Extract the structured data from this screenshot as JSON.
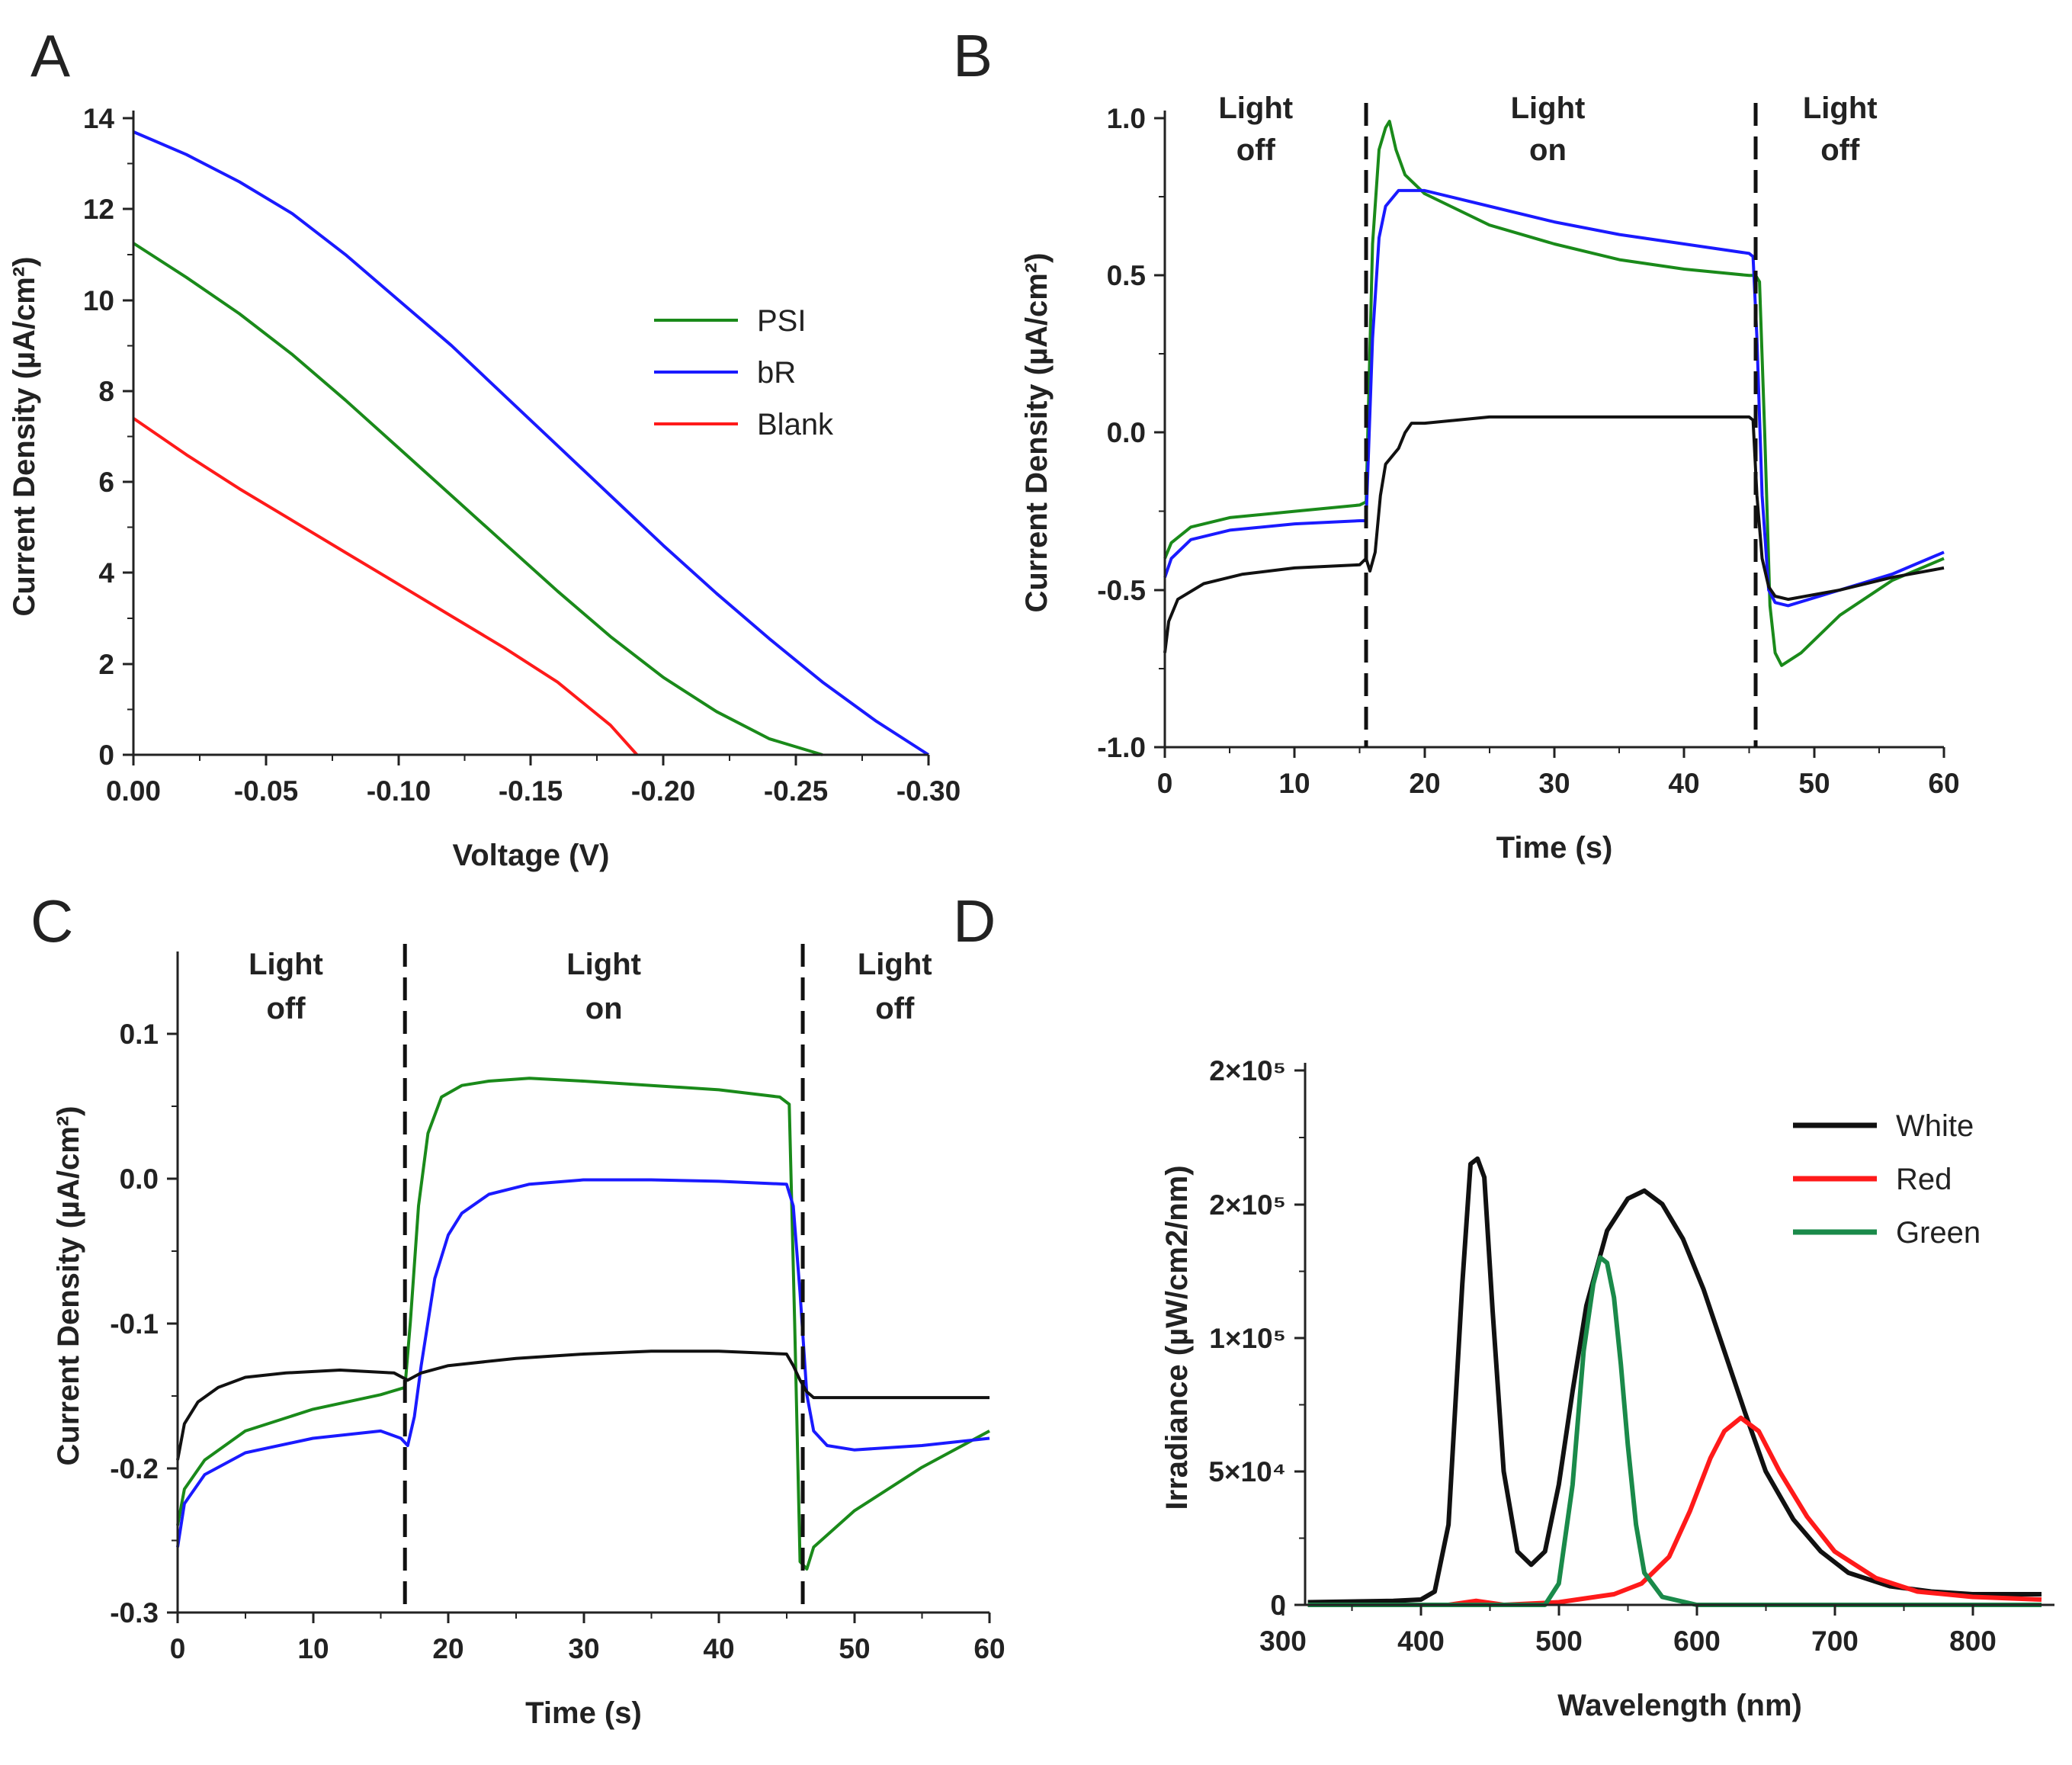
{
  "figure": {
    "panels": [
      "A",
      "B",
      "C",
      "D"
    ]
  },
  "chart_data": [
    {
      "panel": "A",
      "type": "line",
      "title": "",
      "xlabel": "Voltage (V)",
      "ylabel": "Current Density (µA/cm²)",
      "xlim": [
        0,
        -0.3
      ],
      "ylim": [
        0,
        14
      ],
      "xticks": [
        "0.00",
        "-0.05",
        "-0.10",
        "-0.15",
        "-0.20",
        "-0.25",
        "-0.30"
      ],
      "yticks": [
        "0",
        "2",
        "4",
        "6",
        "8",
        "10",
        "12",
        "14"
      ],
      "legend": [
        "PSI",
        "bR",
        "Blank"
      ],
      "series": [
        {
          "name": "PSI",
          "color": "#1a8a1a",
          "x": [
            0,
            -0.02,
            -0.04,
            -0.06,
            -0.08,
            -0.1,
            -0.12,
            -0.14,
            -0.16,
            -0.18,
            -0.2,
            -0.22,
            -0.24,
            -0.26
          ],
          "y": [
            11.25,
            10.5,
            9.7,
            8.8,
            7.8,
            6.75,
            5.7,
            4.65,
            3.6,
            2.6,
            1.7,
            0.95,
            0.35,
            0
          ]
        },
        {
          "name": "bR",
          "color": "#1a1aff",
          "x": [
            0,
            -0.02,
            -0.04,
            -0.06,
            -0.08,
            -0.1,
            -0.12,
            -0.14,
            -0.16,
            -0.18,
            -0.2,
            -0.22,
            -0.24,
            -0.26,
            -0.28,
            -0.3
          ],
          "y": [
            13.7,
            13.2,
            12.6,
            11.9,
            11.0,
            10.0,
            9.0,
            7.9,
            6.8,
            5.7,
            4.6,
            3.55,
            2.55,
            1.6,
            0.75,
            0
          ]
        },
        {
          "name": "Blank",
          "color": "#ff1a1a",
          "x": [
            0,
            -0.02,
            -0.04,
            -0.06,
            -0.08,
            -0.1,
            -0.12,
            -0.14,
            -0.16,
            -0.18,
            -0.19
          ],
          "y": [
            7.4,
            6.6,
            5.85,
            5.15,
            4.45,
            3.75,
            3.05,
            2.35,
            1.6,
            0.65,
            0
          ]
        }
      ]
    },
    {
      "panel": "B",
      "type": "line",
      "title": "",
      "xlabel": "Time (s)",
      "ylabel": "Current Density (µA/cm²)",
      "xlim": [
        0,
        60
      ],
      "ylim": [
        -1.0,
        1.0
      ],
      "xticks": [
        "0",
        "10",
        "20",
        "30",
        "40",
        "50",
        "60"
      ],
      "yticks": [
        "-1.0",
        "-0.5",
        "0.0",
        "0.5",
        "1.0"
      ],
      "vlines": [
        15.5,
        45.5
      ],
      "regions": [
        {
          "line1": "Light",
          "line2": "off",
          "x": 7
        },
        {
          "line1": "Light",
          "line2": "on",
          "x": 29.5
        },
        {
          "line1": "Light",
          "line2": "off",
          "x": 52
        }
      ],
      "series": [
        {
          "name": "PSI",
          "color": "#1a8a1a",
          "x": [
            0,
            0.5,
            2,
            5,
            10,
            15,
            15.5,
            16,
            16.5,
            17,
            17.3,
            17.8,
            18.5,
            20,
            25,
            30,
            35,
            40,
            45,
            45.5,
            45.8,
            46.2,
            46.6,
            47,
            47.5,
            49,
            52,
            56,
            60
          ],
          "y": [
            -0.4,
            -0.35,
            -0.3,
            -0.27,
            -0.25,
            -0.23,
            -0.22,
            0.6,
            0.9,
            0.97,
            0.99,
            0.9,
            0.82,
            0.76,
            0.66,
            0.6,
            0.55,
            0.52,
            0.5,
            0.5,
            0.48,
            0.0,
            -0.55,
            -0.7,
            -0.74,
            -0.7,
            -0.58,
            -0.47,
            -0.4
          ]
        },
        {
          "name": "bR",
          "color": "#1a1aff",
          "x": [
            0,
            0.5,
            2,
            5,
            10,
            15,
            15.5,
            16,
            16.5,
            17,
            18,
            20,
            25,
            30,
            35,
            40,
            45,
            45.3,
            45.6,
            46,
            46.5,
            47,
            48,
            52,
            56,
            60
          ],
          "y": [
            -0.46,
            -0.4,
            -0.34,
            -0.31,
            -0.29,
            -0.28,
            -0.28,
            0.3,
            0.62,
            0.72,
            0.77,
            0.77,
            0.72,
            0.67,
            0.63,
            0.6,
            0.57,
            0.56,
            0.3,
            -0.2,
            -0.5,
            -0.54,
            -0.55,
            -0.5,
            -0.45,
            -0.38
          ]
        },
        {
          "name": "Blank",
          "color": "#111111",
          "x": [
            0,
            0.3,
            1,
            3,
            6,
            10,
            15,
            15.5,
            15.8,
            16.2,
            16.6,
            17,
            18,
            18.5,
            19,
            20,
            25,
            30,
            40,
            45,
            45.3,
            45.6,
            46,
            46.5,
            47,
            48,
            52,
            56,
            60
          ],
          "y": [
            -0.7,
            -0.6,
            -0.53,
            -0.48,
            -0.45,
            -0.43,
            -0.42,
            -0.4,
            -0.44,
            -0.38,
            -0.2,
            -0.1,
            -0.05,
            0.0,
            0.03,
            0.03,
            0.05,
            0.05,
            0.05,
            0.05,
            0.04,
            -0.2,
            -0.4,
            -0.49,
            -0.52,
            -0.53,
            -0.5,
            -0.46,
            -0.43
          ]
        }
      ]
    },
    {
      "panel": "C",
      "type": "line",
      "title": "",
      "xlabel": "Time (s)",
      "ylabel": "Current Density (µA/cm²)",
      "xlim": [
        0,
        60
      ],
      "ylim": [
        -0.3,
        0.15
      ],
      "xticks": [
        "0",
        "10",
        "20",
        "30",
        "40",
        "50",
        "60"
      ],
      "yticks": [
        "-0.3",
        "-0.2",
        "-0.1",
        "0.0",
        "0.1"
      ],
      "vlines": [
        16.8,
        46.2
      ],
      "regions": [
        {
          "line1": "Light",
          "line2": "off",
          "x": 8
        },
        {
          "line1": "Light",
          "line2": "on",
          "x": 31.5
        },
        {
          "line1": "Light",
          "line2": "off",
          "x": 53
        }
      ],
      "series": [
        {
          "name": "PSI",
          "color": "#1a8a1a",
          "x": [
            0,
            0.5,
            2,
            5,
            10,
            15,
            16.8,
            17.2,
            17.8,
            18.5,
            19.5,
            21,
            23,
            26,
            30,
            35,
            40,
            44.5,
            45.2,
            45.6,
            46,
            46.5,
            47,
            50,
            55,
            60
          ],
          "y": [
            -0.24,
            -0.215,
            -0.195,
            -0.175,
            -0.16,
            -0.15,
            -0.145,
            -0.1,
            -0.02,
            0.03,
            0.055,
            0.063,
            0.066,
            0.068,
            0.066,
            0.063,
            0.06,
            0.055,
            0.05,
            -0.1,
            -0.265,
            -0.27,
            -0.255,
            -0.23,
            -0.2,
            -0.175
          ]
        },
        {
          "name": "bR",
          "color": "#1a1aff",
          "x": [
            0,
            0.5,
            2,
            5,
            10,
            15,
            16.5,
            17,
            17.5,
            18,
            19,
            20,
            21,
            23,
            26,
            30,
            35,
            40,
            45,
            45.5,
            46,
            46.5,
            47,
            48,
            50,
            55,
            60
          ],
          "y": [
            -0.255,
            -0.225,
            -0.205,
            -0.19,
            -0.18,
            -0.175,
            -0.18,
            -0.185,
            -0.165,
            -0.13,
            -0.07,
            -0.04,
            -0.025,
            -0.012,
            -0.005,
            -0.002,
            -0.002,
            -0.003,
            -0.005,
            -0.02,
            -0.08,
            -0.15,
            -0.175,
            -0.185,
            -0.188,
            -0.185,
            -0.18
          ]
        },
        {
          "name": "Blank",
          "color": "#111111",
          "x": [
            0,
            0.5,
            1.5,
            3,
            5,
            8,
            12,
            16,
            17,
            18,
            20,
            25,
            30,
            35,
            40,
            45,
            45.5,
            46,
            46.5,
            47,
            50,
            55,
            60
          ],
          "y": [
            -0.195,
            -0.17,
            -0.155,
            -0.145,
            -0.138,
            -0.135,
            -0.133,
            -0.135,
            -0.14,
            -0.135,
            -0.13,
            -0.125,
            -0.122,
            -0.12,
            -0.12,
            -0.122,
            -0.13,
            -0.14,
            -0.148,
            -0.152,
            -0.152,
            -0.152,
            -0.152
          ]
        }
      ]
    },
    {
      "panel": "D",
      "type": "line",
      "title": "",
      "xlabel": "Wavelength (nm)",
      "ylabel": "Irradiance (µW/cm2/nm)",
      "xlim": [
        300,
        850
      ],
      "ylim": [
        0,
        200000
      ],
      "xticks": [
        "300",
        "400",
        "500",
        "600",
        "700",
        "800"
      ],
      "yticks": [
        "0",
        "5×10⁴",
        "1×10⁵",
        "2×10⁵",
        "2×10⁵"
      ],
      "ytick_values": [
        0,
        50000,
        100000,
        150000,
        200000
      ],
      "legend": [
        "White",
        "Red",
        "Green"
      ],
      "series": [
        {
          "name": "White",
          "color": "#111111",
          "x": [
            318,
            380,
            400,
            410,
            420,
            430,
            436,
            441,
            446,
            452,
            460,
            470,
            480,
            490,
            500,
            510,
            520,
            535,
            550,
            562,
            575,
            590,
            605,
            620,
            635,
            650,
            670,
            690,
            710,
            740,
            770,
            800,
            850
          ],
          "y": [
            1000,
            1500,
            2000,
            5000,
            30000,
            120000,
            165000,
            167000,
            160000,
            110000,
            50000,
            20000,
            15000,
            20000,
            45000,
            80000,
            112000,
            140000,
            152000,
            155000,
            150000,
            137000,
            118000,
            95000,
            72000,
            50000,
            32000,
            20000,
            12000,
            7000,
            5000,
            4000,
            4000
          ]
        },
        {
          "name": "Red",
          "color": "#ff1a1a",
          "x": [
            318,
            420,
            440,
            460,
            500,
            540,
            560,
            580,
            595,
            610,
            620,
            632,
            645,
            660,
            680,
            700,
            730,
            760,
            800,
            850
          ],
          "y": [
            0,
            0,
            1500,
            0,
            1000,
            4000,
            8000,
            18000,
            35000,
            55000,
            65000,
            70000,
            65000,
            50000,
            33000,
            20000,
            10000,
            5000,
            3000,
            2000
          ]
        },
        {
          "name": "Green",
          "color": "#1a8a4a",
          "x": [
            318,
            490,
            500,
            510,
            518,
            525,
            530,
            535,
            540,
            545,
            550,
            556,
            562,
            575,
            600,
            700,
            850
          ],
          "y": [
            0,
            0,
            8000,
            45000,
            95000,
            120000,
            130000,
            128000,
            115000,
            90000,
            60000,
            30000,
            12000,
            3000,
            0,
            0,
            0
          ]
        }
      ]
    }
  ]
}
